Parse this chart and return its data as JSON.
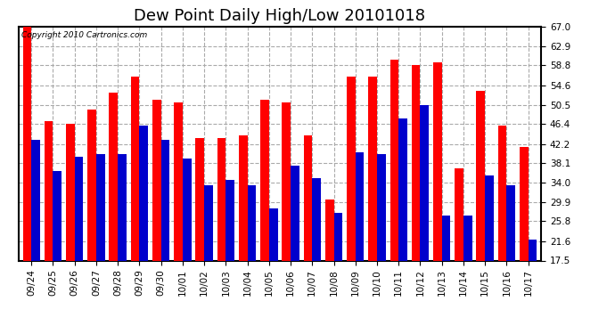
{
  "title": "Dew Point Daily High/Low 20101018",
  "copyright": "Copyright 2010 Cartronics.com",
  "categories": [
    "09/24",
    "09/25",
    "09/26",
    "09/27",
    "09/28",
    "09/29",
    "09/30",
    "10/01",
    "10/02",
    "10/03",
    "10/04",
    "10/05",
    "10/06",
    "10/07",
    "10/08",
    "10/09",
    "10/10",
    "10/11",
    "10/12",
    "10/13",
    "10/14",
    "10/15",
    "10/16",
    "10/17"
  ],
  "highs": [
    67.0,
    47.0,
    46.5,
    49.5,
    53.0,
    56.5,
    51.5,
    51.0,
    43.5,
    43.5,
    44.0,
    51.5,
    51.0,
    44.0,
    30.5,
    56.5,
    56.5,
    60.0,
    58.8,
    59.5,
    37.0,
    53.5,
    46.0,
    41.5
  ],
  "lows": [
    43.0,
    36.5,
    39.5,
    40.0,
    40.0,
    46.0,
    43.0,
    39.0,
    33.5,
    34.5,
    33.5,
    28.5,
    37.5,
    35.0,
    27.5,
    40.5,
    40.0,
    47.5,
    50.5,
    27.0,
    27.0,
    35.5,
    33.5,
    22.0
  ],
  "high_color": "#ff0000",
  "low_color": "#0000cc",
  "background_color": "#ffffff",
  "plot_background": "#ffffff",
  "grid_color": "#aaaaaa",
  "ylim": [
    17.5,
    67.0
  ],
  "yticks": [
    17.5,
    21.6,
    25.8,
    29.9,
    34.0,
    38.1,
    42.2,
    46.4,
    50.5,
    54.6,
    58.8,
    62.9,
    67.0
  ],
  "title_fontsize": 13,
  "tick_fontsize": 7.5,
  "bar_width": 0.4,
  "figsize": [
    6.9,
    3.75
  ],
  "dpi": 100
}
